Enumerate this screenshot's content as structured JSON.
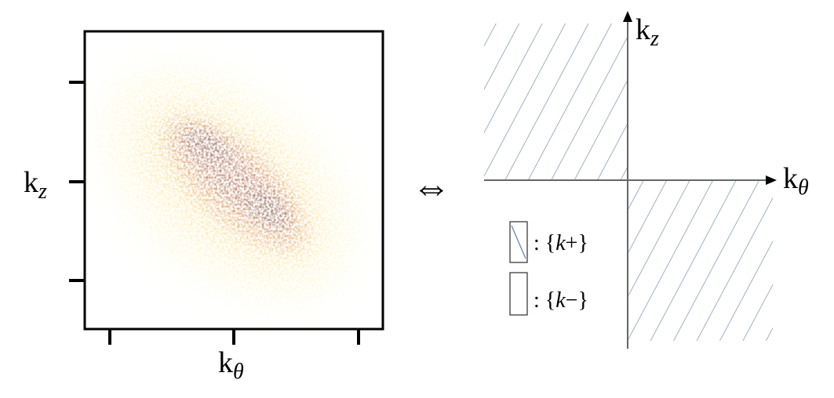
{
  "left_panel": {
    "y_label": {
      "base": "k",
      "sub": "z"
    },
    "x_label": {
      "base": "k",
      "sub": "θ"
    }
  },
  "equivalence_symbol": "⇔",
  "right_panel": {
    "y_axis_label": {
      "base": "k",
      "sub": "z"
    },
    "x_axis_label": {
      "base": "k",
      "sub": "θ"
    },
    "legend": [
      {
        "prefix": ": {",
        "var": "k",
        "suffix": "+}"
      },
      {
        "prefix": ": {",
        "var": "k",
        "suffix": "−}"
      }
    ]
  }
}
